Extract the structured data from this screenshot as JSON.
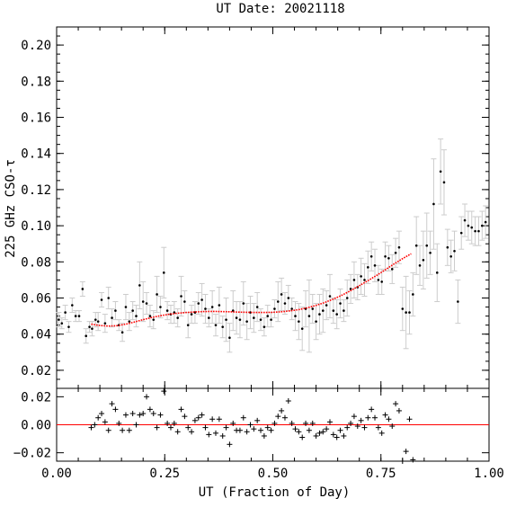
{
  "chart_data": [
    {
      "type": "scatter",
      "title": "UT Date: 20021118",
      "xlabel": "UT (Fraction of Day)",
      "ylabel": "225 GHz CSO-τ",
      "xlim": [
        0.0,
        1.0
      ],
      "ylim": [
        0.01,
        0.21
      ],
      "xticks": [
        0.0,
        0.25,
        0.5,
        0.75,
        1.0
      ],
      "xticklabels": [
        "0.00",
        "0.25",
        "0.50",
        "0.75",
        "1.00"
      ],
      "yticks": [
        0.02,
        0.04,
        0.06,
        0.08,
        0.1,
        0.12,
        0.14,
        0.16,
        0.18,
        0.2
      ],
      "yticklabels": [
        "0.02",
        "0.04",
        "0.06",
        "0.08",
        "0.10",
        "0.12",
        "0.14",
        "0.16",
        "0.18",
        "0.20"
      ],
      "grid": false,
      "colors": {
        "points": "#000000",
        "errorbars": "#cccccc",
        "fit": "#ff0000"
      },
      "series": [
        {
          "kind": "points_with_errorbars",
          "x": [
            0.005,
            0.012,
            0.02,
            0.028,
            0.036,
            0.044,
            0.052,
            0.06,
            0.068,
            0.076,
            0.082,
            0.09,
            0.096,
            0.104,
            0.112,
            0.12,
            0.128,
            0.136,
            0.144,
            0.152,
            0.16,
            0.168,
            0.176,
            0.184,
            0.192,
            0.2,
            0.208,
            0.216,
            0.224,
            0.232,
            0.24,
            0.248,
            0.256,
            0.264,
            0.272,
            0.28,
            0.288,
            0.296,
            0.304,
            0.312,
            0.32,
            0.328,
            0.336,
            0.344,
            0.352,
            0.36,
            0.368,
            0.376,
            0.384,
            0.392,
            0.4,
            0.408,
            0.416,
            0.424,
            0.432,
            0.44,
            0.448,
            0.456,
            0.464,
            0.472,
            0.48,
            0.488,
            0.496,
            0.504,
            0.512,
            0.52,
            0.528,
            0.536,
            0.544,
            0.552,
            0.56,
            0.568,
            0.576,
            0.584,
            0.592,
            0.6,
            0.608,
            0.616,
            0.624,
            0.632,
            0.64,
            0.648,
            0.656,
            0.664,
            0.672,
            0.68,
            0.688,
            0.696,
            0.704,
            0.712,
            0.72,
            0.728,
            0.736,
            0.744,
            0.752,
            0.76,
            0.768,
            0.776,
            0.784,
            0.792,
            0.8,
            0.808,
            0.816,
            0.824,
            0.832,
            0.84,
            0.848,
            0.856,
            0.864,
            0.872,
            0.88,
            0.888,
            0.896,
            0.904,
            0.912,
            0.92,
            0.928,
            0.936,
            0.944,
            0.952,
            0.96,
            0.968,
            0.976,
            0.984,
            0.992
          ],
          "y": [
            0.048,
            0.046,
            0.052,
            0.044,
            0.056,
            0.05,
            0.05,
            0.065,
            0.039,
            0.044,
            0.043,
            0.048,
            0.047,
            0.059,
            0.046,
            0.06,
            0.049,
            0.053,
            0.045,
            0.041,
            0.055,
            0.047,
            0.053,
            0.05,
            0.067,
            0.058,
            0.057,
            0.05,
            0.048,
            0.062,
            0.055,
            0.074,
            0.053,
            0.051,
            0.052,
            0.049,
            0.061,
            0.058,
            0.045,
            0.051,
            0.052,
            0.057,
            0.059,
            0.054,
            0.049,
            0.055,
            0.045,
            0.056,
            0.044,
            0.048,
            0.038,
            0.053,
            0.049,
            0.048,
            0.057,
            0.047,
            0.052,
            0.049,
            0.055,
            0.048,
            0.044,
            0.05,
            0.048,
            0.054,
            0.058,
            0.062,
            0.057,
            0.06,
            0.054,
            0.05,
            0.047,
            0.043,
            0.054,
            0.05,
            0.054,
            0.047,
            0.051,
            0.053,
            0.056,
            0.061,
            0.053,
            0.051,
            0.057,
            0.053,
            0.06,
            0.065,
            0.07,
            0.066,
            0.072,
            0.07,
            0.077,
            0.083,
            0.078,
            0.07,
            0.069,
            0.083,
            0.082,
            0.076,
            0.085,
            0.088,
            0.054,
            0.052,
            0.052,
            0.062,
            0.089,
            0.078,
            0.081,
            0.089,
            0.085,
            0.112,
            0.074,
            0.13,
            0.124,
            0.088,
            0.083,
            0.086,
            0.058,
            0.096,
            0.103,
            0.1,
            0.099,
            0.097,
            0.097,
            0.1,
            0.102
          ],
          "yerr": [
            0.004,
            0.003,
            0.004,
            0.003,
            0.004,
            0.003,
            0.003,
            0.004,
            0.004,
            0.003,
            0.004,
            0.004,
            0.005,
            0.004,
            0.005,
            0.006,
            0.005,
            0.005,
            0.003,
            0.005,
            0.007,
            0.005,
            0.005,
            0.006,
            0.013,
            0.011,
            0.006,
            0.006,
            0.005,
            0.01,
            0.006,
            0.014,
            0.005,
            0.005,
            0.006,
            0.005,
            0.011,
            0.006,
            0.007,
            0.005,
            0.006,
            0.006,
            0.009,
            0.008,
            0.005,
            0.009,
            0.006,
            0.01,
            0.006,
            0.012,
            0.008,
            0.011,
            0.009,
            0.01,
            0.012,
            0.01,
            0.009,
            0.008,
            0.008,
            0.006,
            0.005,
            0.006,
            0.004,
            0.005,
            0.011,
            0.009,
            0.006,
            0.007,
            0.006,
            0.008,
            0.01,
            0.012,
            0.01,
            0.02,
            0.008,
            0.01,
            0.011,
            0.012,
            0.008,
            0.012,
            0.007,
            0.008,
            0.008,
            0.006,
            0.01,
            0.008,
            0.01,
            0.007,
            0.01,
            0.009,
            0.009,
            0.008,
            0.009,
            0.008,
            0.007,
            0.008,
            0.007,
            0.008,
            0.008,
            0.009,
            0.012,
            0.02,
            0.012,
            0.012,
            0.016,
            0.011,
            0.016,
            0.018,
            0.012,
            0.025,
            0.016,
            0.018,
            0.018,
            0.01,
            0.009,
            0.011,
            0.012,
            0.009,
            0.009,
            0.008,
            0.009,
            0.008,
            0.008,
            0.008,
            0.009
          ]
        },
        {
          "kind": "fit_curve",
          "x": [
            0.08,
            0.1,
            0.12,
            0.14,
            0.16,
            0.18,
            0.2,
            0.22,
            0.24,
            0.26,
            0.28,
            0.3,
            0.32,
            0.34,
            0.36,
            0.38,
            0.4,
            0.42,
            0.44,
            0.46,
            0.48,
            0.5,
            0.52,
            0.54,
            0.56,
            0.58,
            0.6,
            0.62,
            0.64,
            0.66,
            0.68,
            0.7,
            0.72,
            0.74,
            0.76,
            0.78,
            0.8,
            0.82
          ],
          "y": [
            0.0455,
            0.0448,
            0.0445,
            0.0447,
            0.0455,
            0.0467,
            0.048,
            0.0492,
            0.0502,
            0.051,
            0.0516,
            0.052,
            0.0523,
            0.0525,
            0.0526,
            0.0525,
            0.0524,
            0.0522,
            0.0521,
            0.052,
            0.052,
            0.0521,
            0.0524,
            0.0529,
            0.0536,
            0.0546,
            0.0559,
            0.0575,
            0.0594,
            0.0616,
            0.0641,
            0.0668,
            0.0696,
            0.0725,
            0.0756,
            0.0788,
            0.0818,
            0.0845
          ]
        }
      ]
    },
    {
      "type": "scatter",
      "title": "",
      "xlabel": "UT (Fraction of Day)",
      "ylabel": "",
      "xlim": [
        0.0,
        1.0
      ],
      "ylim": [
        -0.026,
        0.026
      ],
      "xticks": [
        0.0,
        0.25,
        0.5,
        0.75,
        1.0
      ],
      "xticklabels": [
        "0.00",
        "0.25",
        "0.50",
        "0.75",
        "1.00"
      ],
      "yticks": [
        -0.02,
        0.0,
        0.02
      ],
      "yticklabels": [
        "−0.02",
        "0.00",
        "0.02"
      ],
      "zero_line": 0.0,
      "colors": {
        "markers": "#000000",
        "zero_line": "#ff0000"
      },
      "series": [
        {
          "kind": "residuals",
          "x": [
            0.08,
            0.088,
            0.096,
            0.104,
            0.112,
            0.12,
            0.128,
            0.136,
            0.144,
            0.152,
            0.16,
            0.168,
            0.176,
            0.184,
            0.192,
            0.2,
            0.208,
            0.216,
            0.224,
            0.232,
            0.24,
            0.248,
            0.256,
            0.264,
            0.272,
            0.28,
            0.288,
            0.296,
            0.304,
            0.312,
            0.32,
            0.328,
            0.336,
            0.344,
            0.352,
            0.36,
            0.368,
            0.376,
            0.384,
            0.392,
            0.4,
            0.408,
            0.416,
            0.424,
            0.432,
            0.44,
            0.448,
            0.456,
            0.464,
            0.472,
            0.48,
            0.488,
            0.496,
            0.504,
            0.512,
            0.52,
            0.528,
            0.536,
            0.544,
            0.552,
            0.56,
            0.568,
            0.576,
            0.584,
            0.592,
            0.6,
            0.608,
            0.616,
            0.624,
            0.632,
            0.64,
            0.648,
            0.656,
            0.664,
            0.672,
            0.68,
            0.688,
            0.696,
            0.704,
            0.712,
            0.72,
            0.728,
            0.736,
            0.744,
            0.752,
            0.76,
            0.768,
            0.776,
            0.784,
            0.792,
            0.8,
            0.808,
            0.816,
            0.824
          ],
          "y": [
            -0.002,
            0.0,
            0.005,
            0.008,
            0.002,
            -0.004,
            0.015,
            0.011,
            0.001,
            -0.004,
            0.007,
            -0.004,
            0.008,
            0.0,
            0.007,
            0.008,
            0.02,
            0.011,
            0.008,
            -0.002,
            0.007,
            0.024,
            0.001,
            -0.002,
            0.001,
            -0.005,
            0.011,
            0.006,
            -0.002,
            -0.005,
            0.003,
            0.005,
            0.007,
            -0.002,
            -0.007,
            0.004,
            -0.006,
            0.004,
            -0.008,
            -0.002,
            -0.014,
            0.001,
            -0.004,
            -0.004,
            0.005,
            -0.005,
            0.0,
            -0.003,
            0.003,
            -0.004,
            -0.008,
            -0.002,
            -0.004,
            0.001,
            0.006,
            0.01,
            0.005,
            0.017,
            0.001,
            -0.003,
            -0.005,
            -0.009,
            0.001,
            -0.004,
            0.001,
            -0.008,
            -0.006,
            -0.005,
            -0.003,
            0.002,
            -0.007,
            -0.009,
            -0.004,
            -0.008,
            -0.002,
            0.001,
            0.006,
            -0.001,
            0.003,
            -0.002,
            0.005,
            0.011,
            0.005,
            -0.002,
            -0.006,
            0.007,
            0.004,
            -0.001,
            0.015,
            0.01,
            -0.026,
            -0.019,
            0.004,
            -0.025
          ],
          "marker": "+"
        }
      ]
    }
  ]
}
